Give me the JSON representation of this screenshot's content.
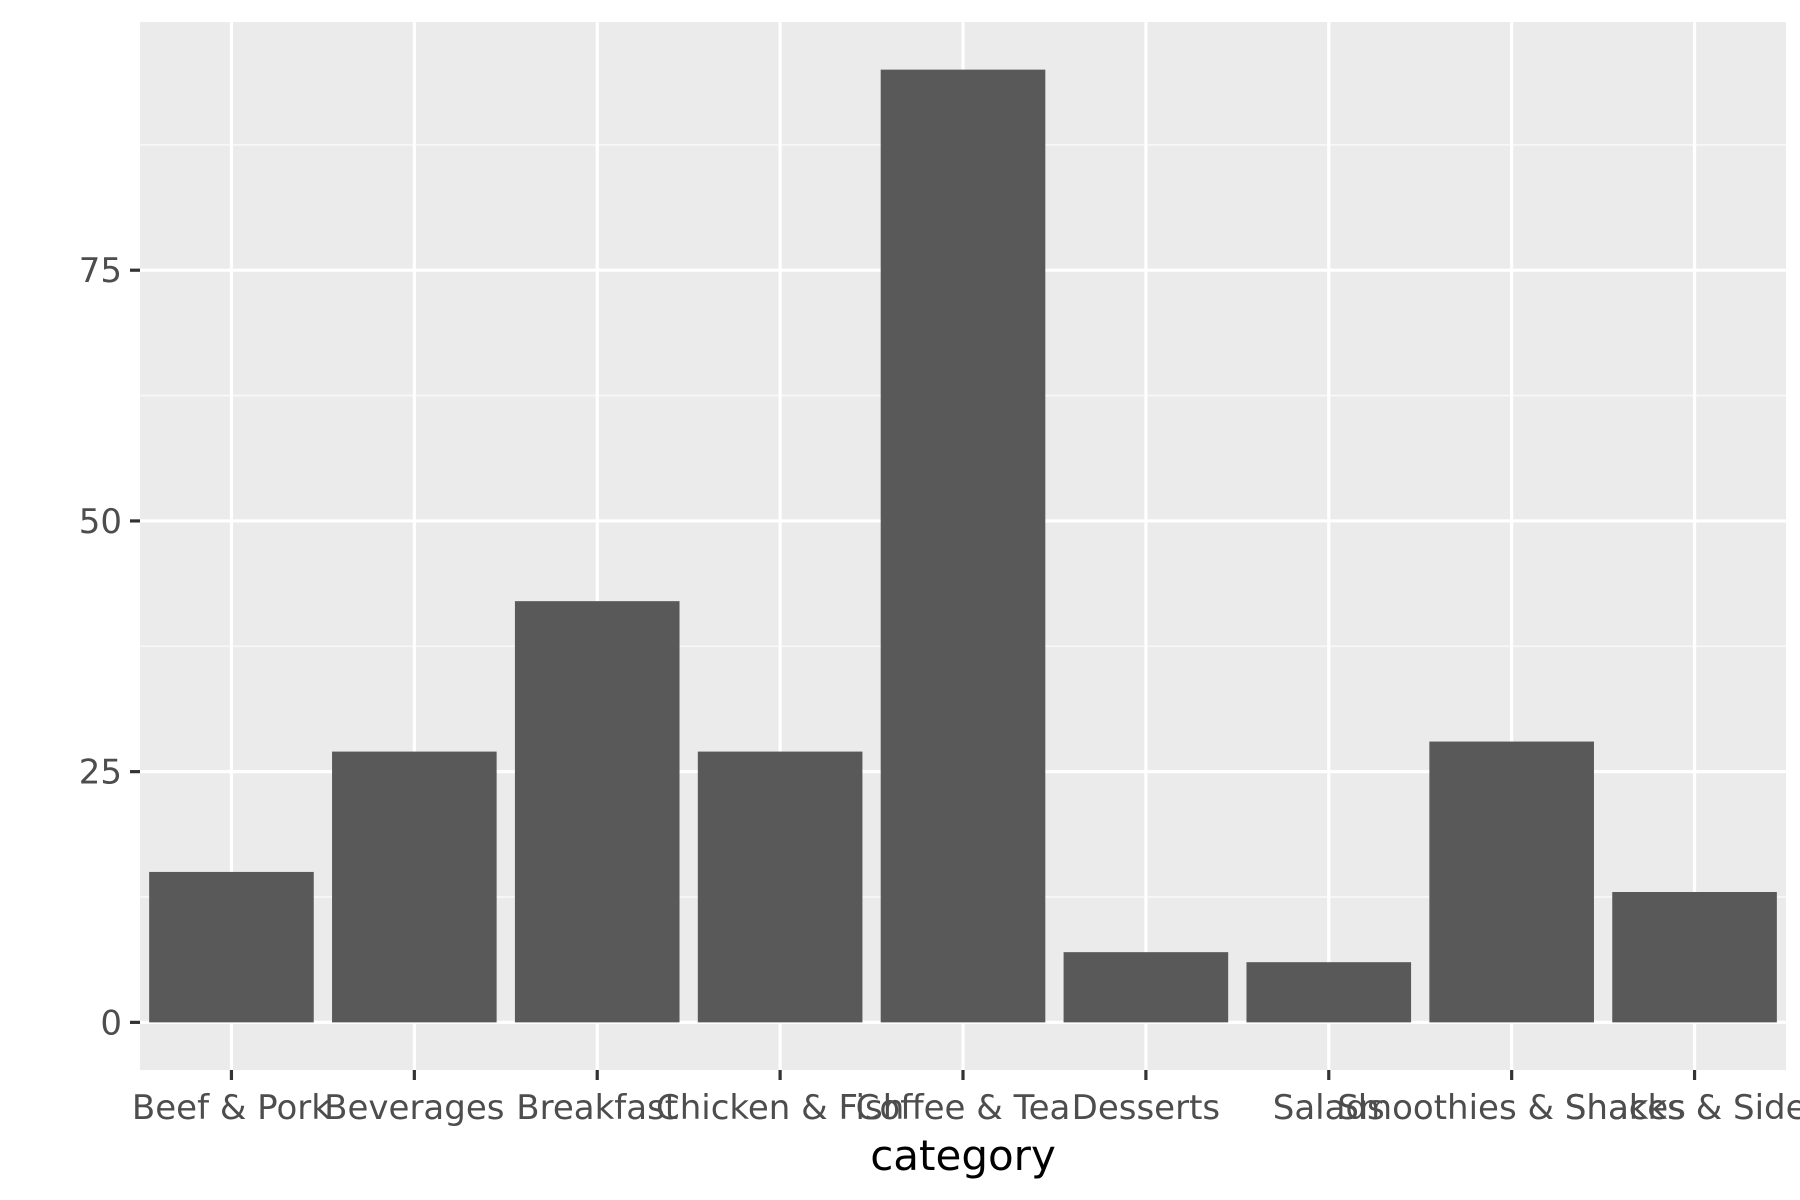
{
  "chart_data": {
    "type": "bar",
    "title": "",
    "xlabel": "category",
    "ylabel": "",
    "categories": [
      "Beef & Pork",
      "Beverages",
      "Breakfast",
      "Chicken & Fish",
      "Coffee & Tea",
      "Desserts",
      "Salads",
      "Smoothies & Shakes",
      "Snacks & Sides"
    ],
    "values": [
      15,
      27,
      42,
      27,
      95,
      7,
      6,
      28,
      13
    ],
    "ylim": [
      -4.75,
      99.75
    ],
    "yticks": [
      0,
      25,
      50,
      75
    ],
    "grid": true,
    "legend": "none",
    "colors": {
      "panel_background": "#ebebeb",
      "grid_major": "#ffffff",
      "grid_minor": "#f7f7f7",
      "bar_fill": "#595959",
      "tick_mark": "#333333",
      "tick_text": "#4d4d4d",
      "axis_title": "#000000"
    }
  }
}
